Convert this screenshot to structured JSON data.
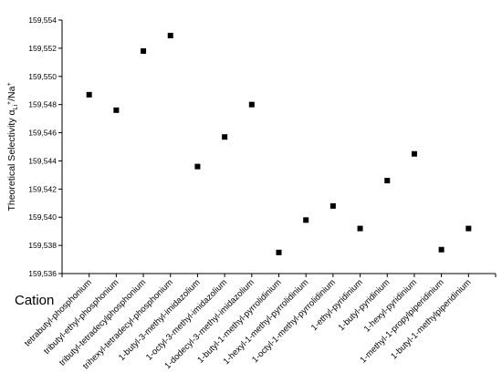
{
  "chart_data": {
    "type": "scatter",
    "title": "",
    "xlabel": "Cation",
    "ylabel": {
      "main": "Theoretical Selectivity α",
      "sub": "Li",
      "sup": "+",
      "tail": "/Na",
      "tail_sup": "+"
    },
    "ylim": [
      159.536,
      159.554
    ],
    "yticks": [
      "159,536",
      "159,538",
      "159,540",
      "159,542",
      "159,544",
      "159,546",
      "159,548",
      "159,550",
      "159,552",
      "159,554"
    ],
    "grid": false,
    "legend": "none",
    "marker_color": "#000000",
    "categories": [
      "tetrabutyl-phosphonium",
      "tributyl-ethyl-phosphonium",
      "tributyl-tetradecylphosphonium",
      "trihexyl-tetradecyl-phosphonium",
      "1-butyl-3-methyl-imidazolium",
      "1-octyl-3-methyl-imidazolium",
      "1-dodecyl-3-methyl-imidazolium",
      "1-butyl-1-methyl-pyrrolidinium",
      "1-hexyl-1-methyl-pyrrolidinium",
      "1-octyl-1-methyl-pyrrolidinium",
      "1-ethyl-pyridinium",
      "1-butyl-pyridinium",
      "1-hexyl-pyridinium",
      "1-methyl-1-propylpiperidinium",
      "1-butyl-1-methylpiperidinium"
    ],
    "values": [
      159.5487,
      159.5476,
      159.5518,
      159.5529,
      159.5436,
      159.5457,
      159.548,
      159.5375,
      159.5398,
      159.5408,
      159.5392,
      159.5426,
      159.5445,
      159.5377,
      159.5392
    ]
  }
}
